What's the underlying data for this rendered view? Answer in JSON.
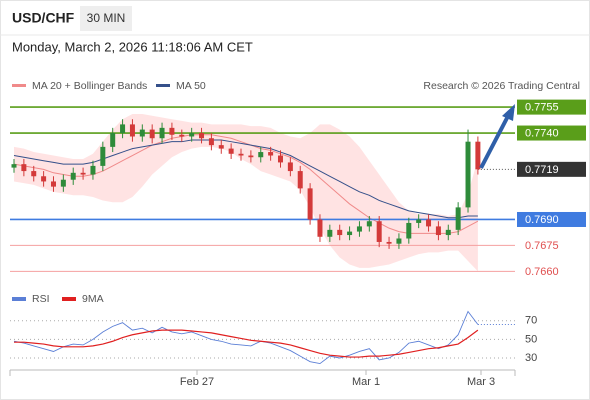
{
  "header": {
    "symbol": "USD/CHF",
    "timeframe": "30 MIN",
    "datetime": "Monday, March 2, 2026 11:18:06 AM CET"
  },
  "chart_data": {
    "type": "candlestick",
    "legend": [
      {
        "name": "MA 20 + Bollinger Bands",
        "color": "#f08a8a"
      },
      {
        "name": "MA 50",
        "color": "#35508a"
      }
    ],
    "credit": "Research © 2026 Trading Central",
    "ylim": [
      0.7655,
      0.7762
    ],
    "levels": [
      0.7755,
      {
        "value": 0.774,
        "label": "0.7740"
      },
      0.7719,
      {
        "value": 0.769,
        "label": "0.7690"
      },
      0.7675,
      {
        "value": 0.766,
        "label": "0.7660"
      }
    ],
    "level_colors": [
      "#5a9e1a",
      "#5a9e1a",
      "#333333",
      "#3f7be0",
      "#e05050",
      "#e05050"
    ],
    "up_color": "#2e8b3a",
    "down_color": "#d33a3a",
    "open": [
      0.772,
      0.7722,
      0.7718,
      0.7715,
      0.7712,
      0.7709,
      0.7713,
      0.7717,
      0.7716,
      0.7721,
      0.7732,
      0.774,
      0.7745,
      0.7738,
      0.7742,
      0.7737,
      0.7743,
      0.7739,
      0.7738,
      0.774,
      0.7737,
      0.7733,
      0.7731,
      0.7728,
      0.7727,
      0.7726,
      0.7729,
      0.7727,
      0.7723,
      0.7718,
      0.7708,
      0.769,
      0.768,
      0.7684,
      0.7681,
      0.7683,
      0.7686,
      0.7689,
      0.7677,
      0.7676,
      0.7679,
      0.7688,
      0.769,
      0.7686,
      0.7681,
      0.7684,
      0.7697,
      0.7735
    ],
    "high": [
      0.7725,
      0.7725,
      0.7721,
      0.7718,
      0.7715,
      0.7716,
      0.772,
      0.772,
      0.7724,
      0.7735,
      0.7743,
      0.7748,
      0.7748,
      0.7745,
      0.7745,
      0.7746,
      0.7746,
      0.7742,
      0.7743,
      0.7743,
      0.774,
      0.7736,
      0.7734,
      0.7731,
      0.773,
      0.7732,
      0.7732,
      0.773,
      0.7726,
      0.7721,
      0.7711,
      0.7693,
      0.7687,
      0.7687,
      0.7686,
      0.7689,
      0.7692,
      0.7692,
      0.768,
      0.7682,
      0.7691,
      0.7693,
      0.7693,
      0.7689,
      0.7687,
      0.77,
      0.7742,
      0.7738
    ],
    "low": [
      0.7717,
      0.7715,
      0.7712,
      0.7709,
      0.7706,
      0.7706,
      0.771,
      0.7713,
      0.7713,
      0.7718,
      0.7729,
      0.7737,
      0.7735,
      0.7735,
      0.7734,
      0.7734,
      0.7736,
      0.7735,
      0.7735,
      0.7734,
      0.773,
      0.7728,
      0.7725,
      0.7724,
      0.7723,
      0.7723,
      0.7724,
      0.772,
      0.7715,
      0.7705,
      0.7687,
      0.7677,
      0.7677,
      0.7678,
      0.7678,
      0.768,
      0.7683,
      0.7674,
      0.7673,
      0.7673,
      0.7676,
      0.7685,
      0.7683,
      0.7678,
      0.7678,
      0.7681,
      0.7694,
      0.7716
    ],
    "close": [
      0.7722,
      0.7718,
      0.7715,
      0.7712,
      0.7709,
      0.7713,
      0.7717,
      0.7716,
      0.7721,
      0.7732,
      0.774,
      0.7745,
      0.7738,
      0.7742,
      0.7737,
      0.7743,
      0.7739,
      0.7738,
      0.774,
      0.7737,
      0.7733,
      0.7731,
      0.7728,
      0.7727,
      0.7726,
      0.7729,
      0.7727,
      0.7723,
      0.7718,
      0.7708,
      0.769,
      0.768,
      0.7684,
      0.7681,
      0.7683,
      0.7686,
      0.7689,
      0.7677,
      0.7676,
      0.7679,
      0.7688,
      0.769,
      0.7686,
      0.7681,
      0.7684,
      0.7697,
      0.7735,
      0.7719
    ],
    "ma20": [
      0.7722,
      0.7721,
      0.772,
      0.7719,
      0.7717,
      0.7716,
      0.7715,
      0.7715,
      0.7716,
      0.7718,
      0.7721,
      0.7724,
      0.7727,
      0.773,
      0.7733,
      0.7735,
      0.7737,
      0.7738,
      0.7739,
      0.7739,
      0.7739,
      0.7738,
      0.7737,
      0.7735,
      0.7733,
      0.7731,
      0.773,
      0.7728,
      0.7726,
      0.7723,
      0.7719,
      0.7714,
      0.7709,
      0.7704,
      0.7699,
      0.7695,
      0.7691,
      0.7688,
      0.7685,
      0.7683,
      0.7682,
      0.7682,
      0.7682,
      0.7682,
      0.7682,
      0.7683,
      0.7686,
      0.7689
    ],
    "bb_upper": [
      0.7732,
      0.7731,
      0.7729,
      0.7728,
      0.7727,
      0.7726,
      0.7725,
      0.7725,
      0.7728,
      0.7735,
      0.7742,
      0.7748,
      0.7751,
      0.7751,
      0.775,
      0.7749,
      0.7748,
      0.7747,
      0.7746,
      0.7746,
      0.7745,
      0.7745,
      0.7745,
      0.7745,
      0.7744,
      0.7744,
      0.7743,
      0.774,
      0.7738,
      0.7737,
      0.774,
      0.7745,
      0.7745,
      0.7742,
      0.7738,
      0.7732,
      0.7724,
      0.7716,
      0.7708,
      0.77,
      0.7695,
      0.7693,
      0.7693,
      0.7693,
      0.7692,
      0.7693,
      0.7705,
      0.7725
    ],
    "bb_lower": [
      0.7712,
      0.7711,
      0.771,
      0.7708,
      0.7706,
      0.7705,
      0.7704,
      0.7704,
      0.7703,
      0.7701,
      0.77,
      0.77,
      0.7703,
      0.7709,
      0.7716,
      0.7721,
      0.7726,
      0.7729,
      0.7731,
      0.7732,
      0.7732,
      0.7731,
      0.7729,
      0.7725,
      0.7722,
      0.7718,
      0.7716,
      0.7714,
      0.7712,
      0.7707,
      0.7697,
      0.7685,
      0.7675,
      0.7668,
      0.7664,
      0.7662,
      0.7662,
      0.7663,
      0.7664,
      0.7666,
      0.7668,
      0.767,
      0.7671,
      0.7671,
      0.7672,
      0.7672,
      0.7666,
      0.766
    ],
    "ma50": [
      0.7727,
      0.7726,
      0.7725,
      0.7724,
      0.7723,
      0.7722,
      0.7722,
      0.7722,
      0.7723,
      0.7725,
      0.7727,
      0.7729,
      0.7731,
      0.7732,
      0.7733,
      0.7734,
      0.7735,
      0.7735,
      0.7736,
      0.7736,
      0.7736,
      0.7736,
      0.7735,
      0.7734,
      0.7733,
      0.7732,
      0.7731,
      0.7729,
      0.7727,
      0.7724,
      0.7721,
      0.7718,
      0.7715,
      0.7712,
      0.7709,
      0.7706,
      0.7704,
      0.7701,
      0.7699,
      0.7697,
      0.7695,
      0.7694,
      0.7693,
      0.7692,
      0.7691,
      0.7691,
      0.7692,
      0.7692
    ],
    "x_labels": [
      "Feb 27",
      "Mar 1",
      "Mar 3"
    ],
    "rsi": {
      "series": [
        {
          "name": "RSI",
          "color": "#5b7fd6",
          "values": [
            48,
            46,
            43,
            40,
            37,
            42,
            45,
            44,
            50,
            58,
            64,
            68,
            60,
            62,
            57,
            63,
            58,
            56,
            58,
            54,
            50,
            48,
            45,
            44,
            43,
            48,
            46,
            42,
            38,
            32,
            26,
            24,
            32,
            30,
            33,
            37,
            40,
            28,
            30,
            36,
            46,
            48,
            44,
            40,
            44,
            55,
            80,
            66
          ]
        },
        {
          "name": "9MA",
          "color": "#e02020",
          "values": [
            47,
            47,
            46,
            45,
            43,
            42,
            42,
            42,
            43,
            45,
            48,
            52,
            55,
            57,
            59,
            60,
            60,
            60,
            59,
            58,
            57,
            55,
            53,
            51,
            49,
            48,
            47,
            46,
            44,
            41,
            38,
            35,
            33,
            32,
            31,
            31,
            32,
            32,
            33,
            34,
            36,
            38,
            40,
            41,
            43,
            45,
            52,
            60
          ]
        }
      ],
      "ylim": [
        16,
        87
      ],
      "yticks": [
        70,
        50,
        30
      ]
    }
  }
}
